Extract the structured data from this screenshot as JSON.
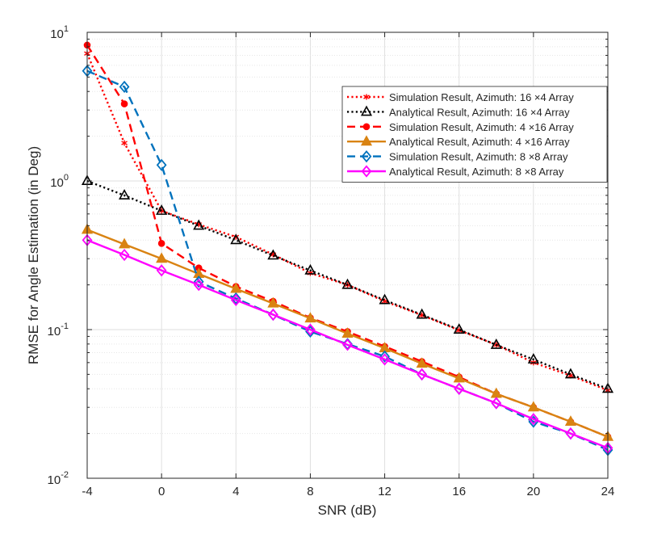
{
  "chart_data": {
    "type": "line",
    "title": "",
    "xlabel": "SNR (dB)",
    "ylabel": "RMSE for Angle Estimation (in Deg)",
    "xlim": [
      -4,
      24
    ],
    "ylim": [
      0.01,
      10
    ],
    "yscale": "log",
    "grid": true,
    "legend_position": "top-right",
    "xticks": [
      -4,
      0,
      4,
      8,
      12,
      16,
      20,
      24
    ],
    "xtick_labels": [
      "-4",
      "0",
      "4",
      "8",
      "12",
      "16",
      "20",
      "24"
    ],
    "yticks": [
      {
        "base": "10",
        "exp": "-2",
        "value": 0.01
      },
      {
        "base": "10",
        "exp": "-1",
        "value": 0.1
      },
      {
        "base": "10",
        "exp": "0",
        "value": 1
      },
      {
        "base": "10",
        "exp": "1",
        "value": 10
      }
    ],
    "x": [
      -4,
      -2,
      0,
      2,
      4,
      6,
      8,
      10,
      12,
      14,
      16,
      18,
      20,
      22,
      24
    ],
    "series": [
      {
        "name": "Simulation Result, Azimuth: 16 ×4 Array",
        "color": "#ff0000",
        "dash": "dotted",
        "marker": "asterisk",
        "values": [
          7.2,
          1.8,
          0.63,
          0.51,
          0.42,
          0.32,
          0.24,
          0.2,
          0.155,
          0.125,
          0.099,
          0.079,
          0.06,
          0.049,
          0.039
        ]
      },
      {
        "name": "Analytical Result, Azimuth: 16 ×4 Array",
        "color": "#000000",
        "dash": "dotted",
        "marker": "triangle",
        "values": [
          1.0,
          0.8,
          0.63,
          0.5,
          0.4,
          0.315,
          0.25,
          0.2,
          0.158,
          0.126,
          0.1,
          0.079,
          0.063,
          0.05,
          0.04
        ]
      },
      {
        "name": "Simulation Result, Azimuth: 4 ×16 Array",
        "color": "#ff0000",
        "dash": "dashed",
        "marker": "circle",
        "values": [
          8.2,
          3.3,
          0.38,
          0.26,
          0.195,
          0.155,
          0.12,
          0.097,
          0.077,
          0.061,
          0.048,
          0.037,
          0.03,
          0.024,
          0.019
        ]
      },
      {
        "name": "Analytical Result, Azimuth: 4 ×16 Array",
        "color": "#d98312",
        "dash": "solid",
        "marker": "triangle",
        "values": [
          0.47,
          0.375,
          0.3,
          0.237,
          0.188,
          0.15,
          0.119,
          0.094,
          0.075,
          0.059,
          0.047,
          0.037,
          0.03,
          0.024,
          0.019
        ]
      },
      {
        "name": "Simulation Result, Azimuth: 8 ×8 Array",
        "color": "#0072bd",
        "dash": "dashed",
        "marker": "diamond",
        "values": [
          5.5,
          4.3,
          1.28,
          0.21,
          0.162,
          0.126,
          0.097,
          0.08,
          0.066,
          0.05,
          0.04,
          0.032,
          0.024,
          0.02,
          0.0155
        ]
      },
      {
        "name": "Analytical Result, Azimuth: 8 ×8 Array",
        "color": "#ff00ff",
        "dash": "solid",
        "marker": "diamond",
        "values": [
          0.4,
          0.318,
          0.25,
          0.2,
          0.158,
          0.126,
          0.1,
          0.079,
          0.063,
          0.05,
          0.04,
          0.032,
          0.025,
          0.02,
          0.016
        ]
      }
    ]
  }
}
